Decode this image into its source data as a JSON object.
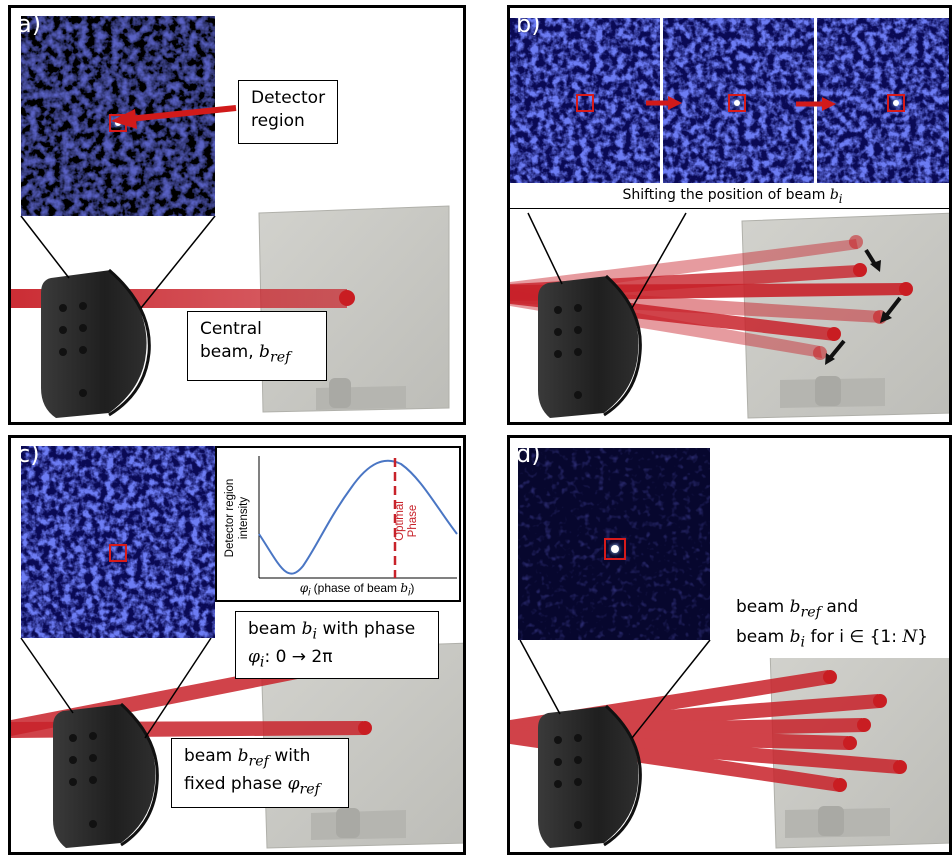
{
  "panels": {
    "a": {
      "label": "a)",
      "detector_label": "Detector\nregion",
      "central_label": "Central\nbeam, ",
      "central_sym": "b",
      "central_sub": "ref"
    },
    "b": {
      "label": "b)",
      "caption_text": "Shifting the position of beam ",
      "caption_sym": "b",
      "caption_sub": "i"
    },
    "c": {
      "label": "c)",
      "inset_ylabel_1": "Detector region",
      "inset_ylabel_2": "intensity",
      "inset_xlabel_sym": "φ",
      "inset_xlabel_sub": "i",
      "inset_xlabel_text": " (phase of beam ",
      "inset_xlabel_b": "b",
      "inset_xlabel_bsub": "i",
      "inset_xlabel_end": ")",
      "optimal_1": "Optimal",
      "optimal_2": "Phase",
      "beam_i_line1": "beam ",
      "beam_i_sym": "b",
      "beam_i_sub": "i",
      "beam_i_line1_end": " with phase",
      "beam_i_line2_sym": "φ",
      "beam_i_line2_sub": "i",
      "beam_i_line2": ": 0 → 2π",
      "beam_ref_line1": "beam ",
      "beam_ref_sym": "b",
      "beam_ref_sub": "ref",
      "beam_ref_line1_end": " with",
      "beam_ref_line2": "fixed phase ",
      "beam_ref_line2_sym": "φ",
      "beam_ref_line2_sub": "ref"
    },
    "d": {
      "label": "d)",
      "line1": "beam ",
      "line1_sym": "b",
      "line1_sub": "ref",
      "line1_end": " and",
      "line2": "beam ",
      "line2_sym": "b",
      "line2_sub": "i",
      "line2_end": " for i ∈ {1: ",
      "line2_N": "N",
      "line2_close": "}"
    }
  },
  "colors": {
    "beam": "#c8222a",
    "arrow_red": "#d11a1a",
    "speckle_bg": "#0a0a55",
    "screen": "#c9c9c4",
    "camera": "#2a2a2a",
    "curve": "#4a76c4"
  }
}
